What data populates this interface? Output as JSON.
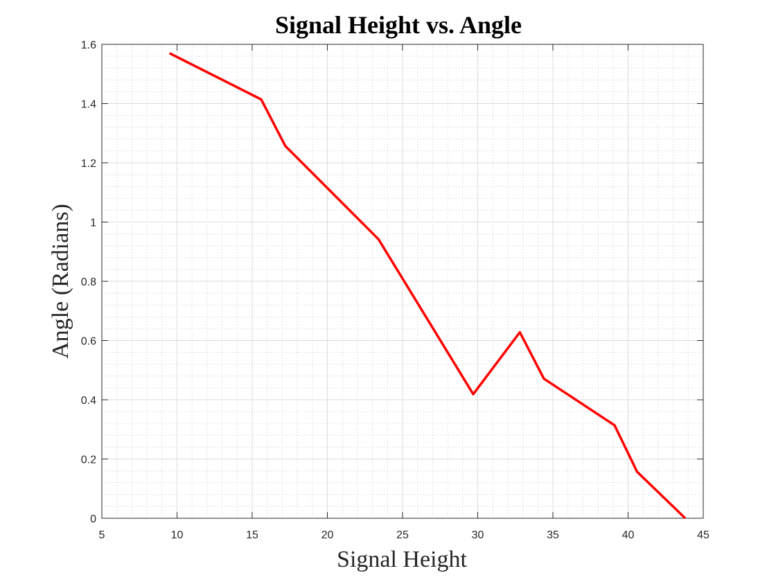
{
  "colors": {
    "line": "#ff0000",
    "major_grid": "#dcdcdc",
    "minor_grid": "#c8c8c8",
    "axes": "#262626"
  },
  "chart_data": {
    "type": "line",
    "title": "Signal Height vs. Angle",
    "xlabel": "Signal Height",
    "ylabel": "Angle (Radians)",
    "xlim": [
      5,
      45
    ],
    "ylim": [
      0,
      1.6
    ],
    "x_ticks": [
      5,
      10,
      15,
      20,
      25,
      30,
      35,
      40,
      45
    ],
    "y_ticks": [
      0,
      0.2,
      0.4,
      0.6,
      0.8,
      1,
      1.2,
      1.4,
      1.6
    ],
    "x_tick_labels": [
      "5",
      "10",
      "15",
      "20",
      "25",
      "30",
      "35",
      "40",
      "45"
    ],
    "y_tick_labels": [
      "0",
      "0.2",
      "0.4",
      "0.6",
      "0.8",
      "1",
      "1.2",
      "1.4",
      "1.6"
    ],
    "grid": true,
    "minor_grid": true,
    "series": [
      {
        "x": [
          9.5,
          15.6,
          17.2,
          23.4,
          29.7,
          32.8,
          34.4,
          39.1,
          40.6,
          43.8
        ],
        "y": [
          1.57,
          1.414,
          1.257,
          0.942,
          0.419,
          0.628,
          0.471,
          0.314,
          0.157,
          0.0
        ],
        "color": "#ff0000"
      }
    ]
  }
}
